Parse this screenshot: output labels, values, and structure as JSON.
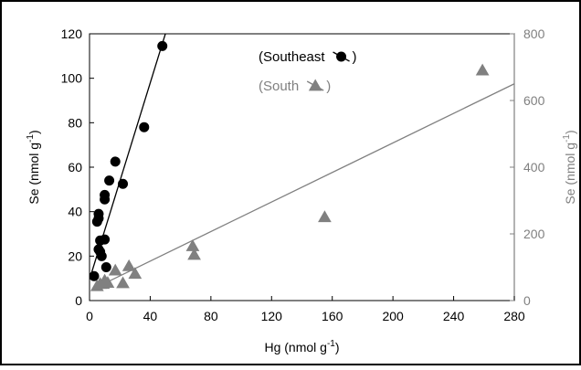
{
  "chart_data": {
    "type": "scatter",
    "title": "",
    "xlabel": "Hg (nmol g",
    "xlabel_sup": "-1",
    "xlabel_close": ")",
    "ylabel_left": "Se (nmol g",
    "ylabel_left_sup": "-1",
    "ylabel_left_close": ")",
    "ylabel_right": "Se (nmol g",
    "ylabel_right_sup": "-1",
    "ylabel_right_close": ")",
    "xlim": [
      0,
      280
    ],
    "ylim_left": [
      0,
      120
    ],
    "ylim_right": [
      0,
      800
    ],
    "xticks": [
      0,
      40,
      80,
      120,
      160,
      200,
      240,
      280
    ],
    "yticks_left": [
      0,
      20,
      40,
      60,
      80,
      100,
      120
    ],
    "yticks_right": [
      0,
      200,
      400,
      600,
      800
    ],
    "grid": false,
    "legend_placement": "top-right",
    "series": [
      {
        "name": "(Southeast",
        "legend_suffix": ")",
        "axis": "left",
        "marker": "circle",
        "color": "#000000",
        "points": [
          [
            3,
            11
          ],
          [
            5,
            35.5
          ],
          [
            6,
            23
          ],
          [
            6,
            37
          ],
          [
            6,
            39
          ],
          [
            7,
            22
          ],
          [
            7,
            27
          ],
          [
            8,
            20
          ],
          [
            10,
            27.5
          ],
          [
            10,
            45.5
          ],
          [
            10,
            47.5
          ],
          [
            11,
            15
          ],
          [
            13,
            54
          ],
          [
            17,
            62.5
          ],
          [
            22,
            52.5
          ],
          [
            36,
            78
          ],
          [
            48,
            114.5
          ]
        ],
        "fit": {
          "x1": 0,
          "y1": 9.5,
          "x2": 50,
          "y2": 120
        }
      },
      {
        "name": "(South",
        "legend_suffix": ")",
        "axis": "right",
        "marker": "triangle",
        "color": "#808080",
        "points": [
          [
            5,
            43
          ],
          [
            7,
            50
          ],
          [
            9,
            50
          ],
          [
            10,
            60
          ],
          [
            12,
            53
          ],
          [
            17,
            90
          ],
          [
            22,
            52
          ],
          [
            26,
            103
          ],
          [
            30,
            80
          ],
          [
            68,
            163
          ],
          [
            69,
            137
          ],
          [
            155,
            250
          ],
          [
            259,
            690
          ]
        ],
        "fit": {
          "x1": 6,
          "y1": 43,
          "x2": 280,
          "y2": 650
        }
      }
    ]
  }
}
